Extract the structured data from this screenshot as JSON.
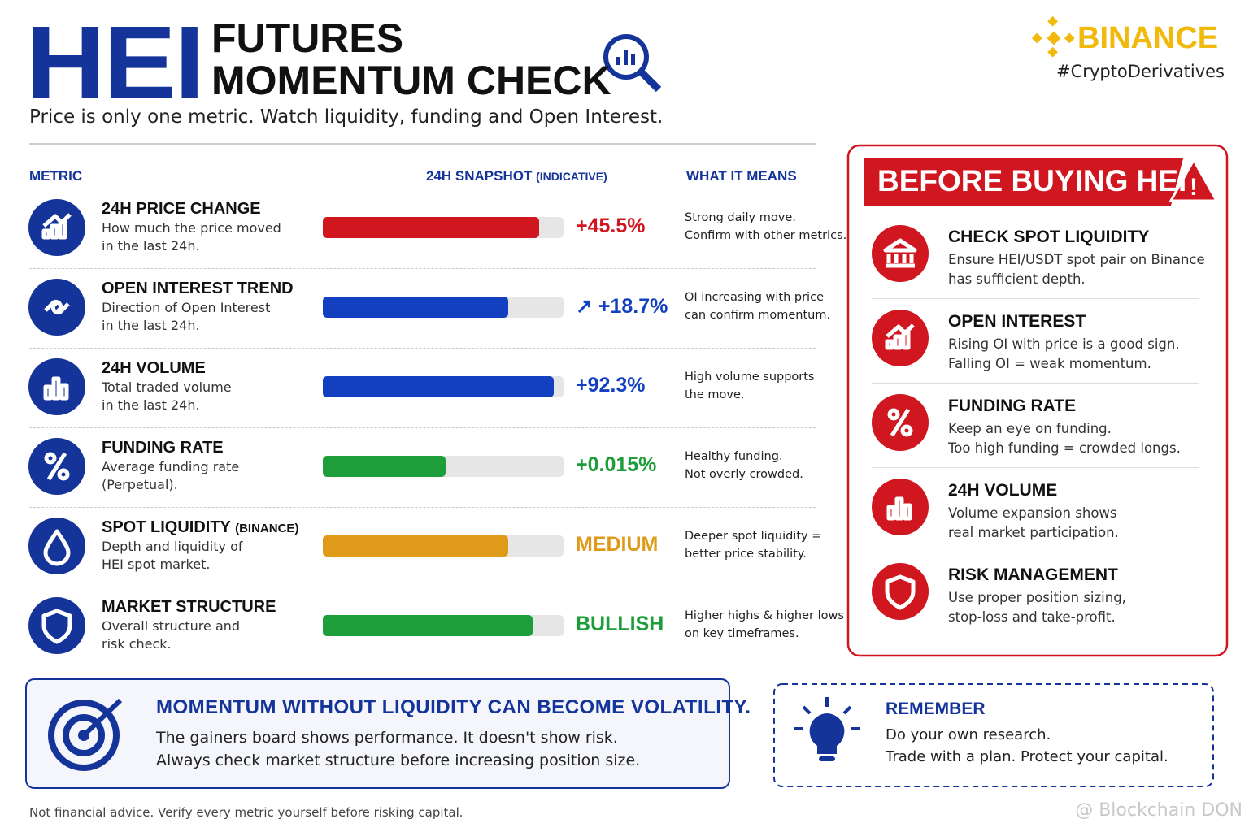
{
  "header": {
    "brand_big": "HEI",
    "title_line1": "FUTURES",
    "title_line2": "MOMENTUM CHECK",
    "subtitle": "Price is only one metric. Watch liquidity, funding and Open Interest.",
    "logo": "BINANCE",
    "hashtag": "#CryptoDerivatives"
  },
  "table": {
    "headers": {
      "metric": "METRIC",
      "snapshot": "24H SNAPSHOT",
      "snapshot_note": "(INDICATIVE)",
      "meaning": "WHAT IT MEANS"
    },
    "rows": [
      {
        "title": "24H PRICE CHANGE",
        "desc": [
          "How much the price moved",
          "in the last 24h."
        ],
        "value": "+45.5%",
        "color": "#d0161e",
        "fill": 0.9,
        "meaning": [
          "Strong daily move.",
          "Confirm with other metrics."
        ]
      },
      {
        "title": "OPEN INTEREST TREND",
        "desc": [
          "Direction of Open Interest",
          "in the last 24h."
        ],
        "value": "↗ +18.7%",
        "color": "#1240c0",
        "fill": 0.77,
        "meaning": [
          "OI increasing with price",
          "can confirm momentum."
        ]
      },
      {
        "title": "24H VOLUME",
        "desc": [
          "Total traded volume",
          "in the last 24h."
        ],
        "value": "+92.3%",
        "color": "#1240c0",
        "fill": 0.96,
        "meaning": [
          "High volume supports",
          "the move."
        ]
      },
      {
        "title": "FUNDING RATE",
        "desc": [
          "Average funding rate",
          "(Perpetual)."
        ],
        "value": "+0.015%",
        "color": "#1e9e3a",
        "fill": 0.51,
        "meaning": [
          "Healthy funding.",
          "Not overly crowded."
        ]
      },
      {
        "title": "SPOT LIQUIDITY",
        "title_note": "(BINANCE)",
        "desc": [
          "Depth and liquidity of",
          "HEI spot market."
        ],
        "value": "MEDIUM",
        "color": "#e09a1a",
        "fill": 0.77,
        "meaning": [
          "Deeper spot liquidity =",
          "better price stability."
        ]
      },
      {
        "title": "MARKET STRUCTURE",
        "desc": [
          "Overall structure and",
          "risk check."
        ],
        "value": "BULLISH",
        "color": "#1e9e3a",
        "fill": 0.87,
        "meaning": [
          "Higher highs & higher lows",
          "on key timeframes."
        ]
      }
    ]
  },
  "checklist": {
    "title": "BEFORE BUYING HEI",
    "items": [
      {
        "title": "CHECK SPOT LIQUIDITY",
        "lines": [
          "Ensure HEI/USDT spot pair on Binance",
          "has sufficient depth."
        ]
      },
      {
        "title": "OPEN INTEREST",
        "lines": [
          "Rising OI with price is a good sign.",
          "Falling OI = weak momentum."
        ]
      },
      {
        "title": "FUNDING RATE",
        "lines": [
          "Keep an eye on funding.",
          "Too high funding = crowded longs."
        ]
      },
      {
        "title": "24H VOLUME",
        "lines": [
          "Volume expansion shows",
          "real market participation."
        ]
      },
      {
        "title": "RISK MANAGEMENT",
        "lines": [
          "Use proper position sizing,",
          "stop-loss and take-profit."
        ]
      }
    ]
  },
  "callout": {
    "title": "MOMENTUM WITHOUT LIQUIDITY CAN BECOME VOLATILITY.",
    "lines": [
      "The gainers board shows performance. It doesn't show risk.",
      "Always check market structure before increasing position size."
    ]
  },
  "remember": {
    "title": "REMEMBER",
    "lines": [
      "Do your own research.",
      "Trade with a plan. Protect your capital."
    ]
  },
  "footer": {
    "disclaimer": "Not financial advice. Verify every metric yourself before risking capital.",
    "watermark": "@ Blockchain DON"
  }
}
